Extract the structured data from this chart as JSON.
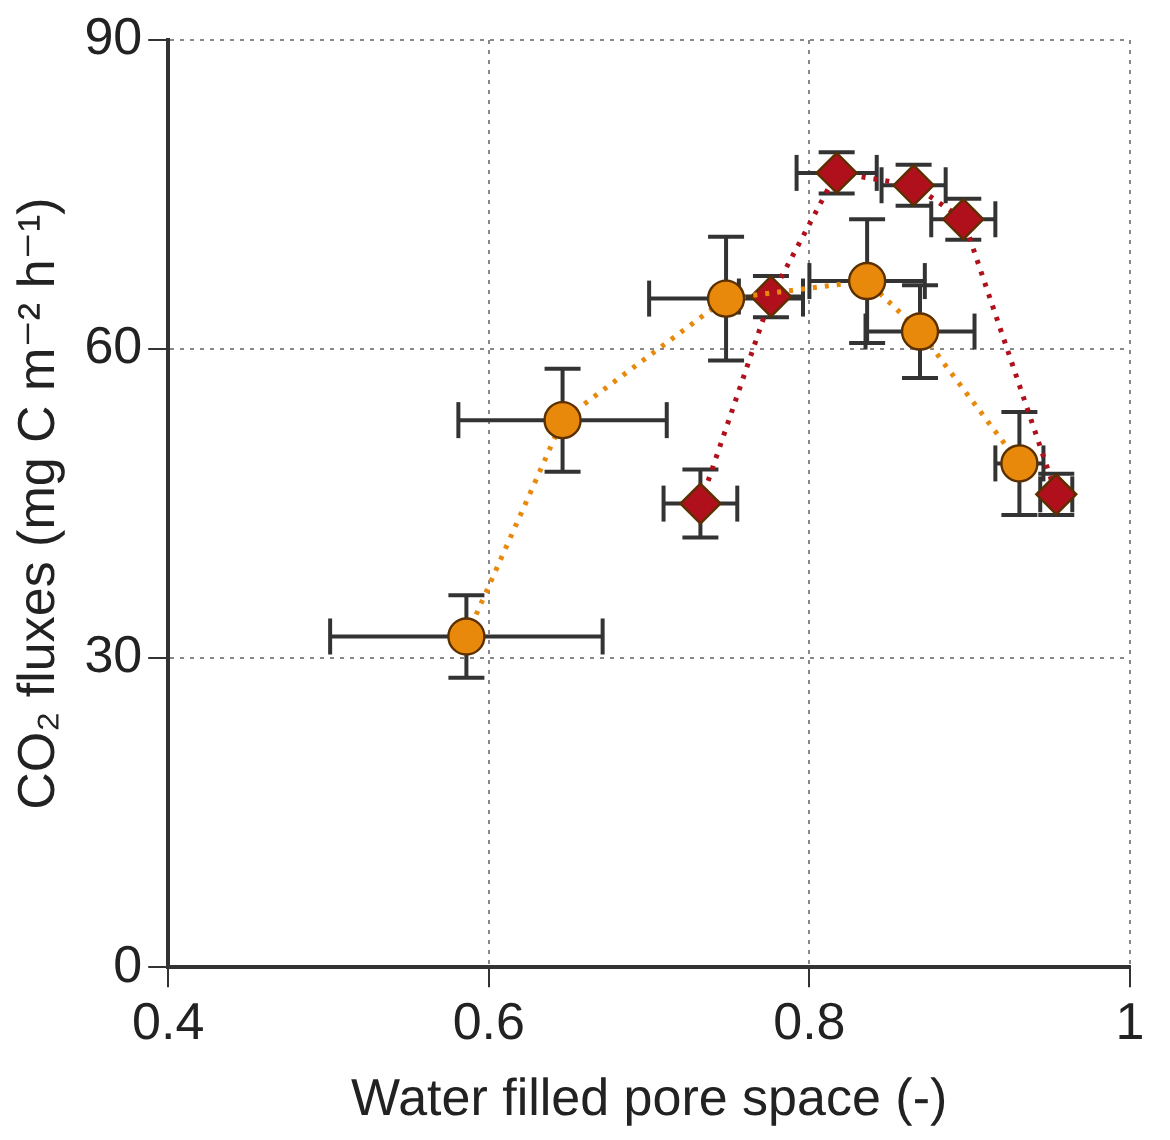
{
  "chart_data": {
    "type": "line",
    "xlabel": "Water filled pore space (-)",
    "ylabel": "CO₂ fluxes (mg C m⁻² h⁻¹)",
    "xlim": [
      0.4,
      1
    ],
    "xticks": [
      0.4,
      0.6,
      0.8,
      1
    ],
    "ylim": [
      0,
      90
    ],
    "yticks": [
      0,
      30,
      60,
      90
    ],
    "grid": true,
    "line_style": "dotted",
    "series": [
      {
        "color": "#e8890c",
        "marker": "circle",
        "x": [
          0.586,
          0.646,
          0.748,
          0.836,
          0.869,
          0.931
        ],
        "values": [
          32.1,
          53.1,
          64.9,
          66.6,
          61.7,
          48.9
        ],
        "errors": [
          4,
          5,
          6,
          6,
          4.5,
          5
        ],
        "xerrors": [
          0.085,
          0.065,
          0.048,
          0.036,
          0.034,
          0.015
        ]
      },
      {
        "color": "#b0101c",
        "marker": "diamond",
        "x": [
          0.732,
          0.776,
          0.817,
          0.865,
          0.896,
          0.954
        ],
        "values": [
          45.0,
          65.1,
          77.1,
          75.9,
          72.6,
          45.9
        ],
        "errors": [
          3.3,
          2,
          2,
          2,
          2,
          2
        ],
        "xerrors": [
          0.023,
          0.02,
          0.025,
          0.02,
          0.02,
          0.01
        ]
      }
    ]
  }
}
